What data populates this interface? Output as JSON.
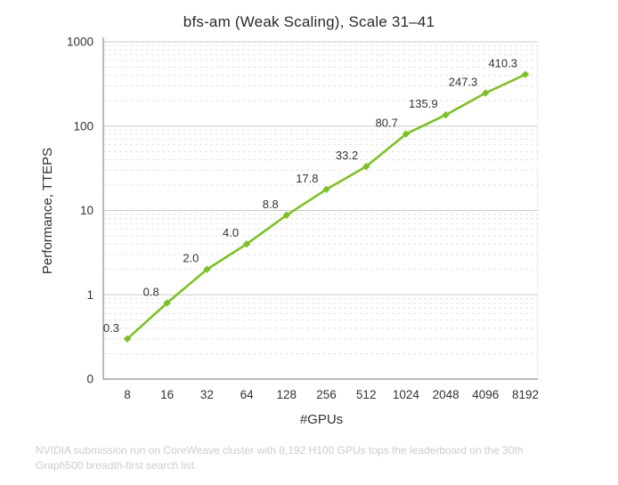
{
  "page": {
    "caption_lines": [
      "NVIDIA submission run on CoreWeave cluster with 8,192 H100 GPUs tops the leaderboard on the 30th",
      "Graph500 breadth-first search list."
    ]
  },
  "chart_data": {
    "type": "line",
    "title": "bfs-am (Weak Scaling), Scale 31–41",
    "xlabel": "#GPUs",
    "ylabel": "Performance, TTEPS",
    "categories": [
      "8",
      "16",
      "32",
      "64",
      "128",
      "256",
      "512",
      "1024",
      "2048",
      "4096",
      "8192"
    ],
    "series": [
      {
        "name": "bfs-am",
        "values": [
          0.3,
          0.8,
          2.0,
          4.0,
          8.8,
          17.8,
          33.2,
          80.7,
          135.9,
          247.3,
          410.3
        ],
        "value_labels": [
          "0.3",
          "0.8",
          "2.0",
          "4.0",
          "8.8",
          "17.8",
          "33.2",
          "80.7",
          "135.9",
          "247.3",
          "410.3"
        ],
        "color": "#7cc222"
      }
    ],
    "y_axis": {
      "scale": "log",
      "tick_labels": [
        "1000",
        "100",
        "10",
        "1",
        "0"
      ],
      "range_log": [
        0.1,
        1000
      ]
    },
    "grid": {
      "horizontal_major": true,
      "horizontal_minor": true,
      "vertical": false
    },
    "legend": "none",
    "colors": {
      "series_green": "#7cc222",
      "tick_text": "#333333",
      "data_label_text": "#333333",
      "axis_line": "#8f8f8f",
      "major_grid": "#cbcbcb",
      "minor_grid": "#e2e2e2",
      "right_border": "#ececec",
      "caption_text": "#c9cdd3",
      "title_text": "#2a2a2a"
    }
  }
}
